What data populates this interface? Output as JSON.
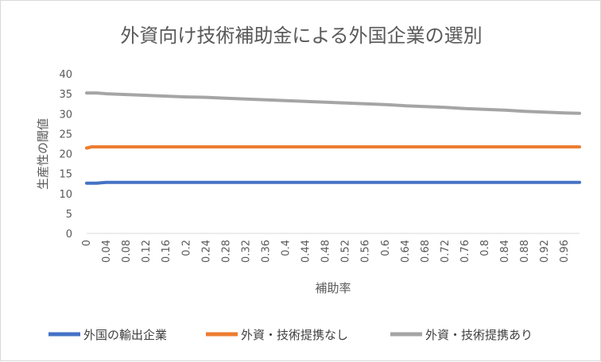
{
  "chart_data": {
    "type": "line",
    "title": "外資向け技術補助金による外国企業の選別",
    "xlabel": "補助率",
    "ylabel": "生産性の閾値",
    "ylim": [
      0,
      40
    ],
    "yticks": [
      0,
      5,
      10,
      15,
      20,
      25,
      30,
      35,
      40
    ],
    "x_tick_labels": [
      "0",
      "0.04",
      "0.08",
      "0.12",
      "0.16",
      "0.2",
      "0.24",
      "0.28",
      "0.32",
      "0.36",
      "0.4",
      "0.44",
      "0.48",
      "0.52",
      "0.56",
      "0.6",
      "0.64",
      "0.68",
      "0.72",
      "0.76",
      "0.8",
      "0.84",
      "0.88",
      "0.92",
      "0.96"
    ],
    "x": [
      0,
      0.01,
      0.02,
      0.04,
      0.08,
      0.12,
      0.16,
      0.2,
      0.24,
      0.28,
      0.32,
      0.36,
      0.4,
      0.44,
      0.48,
      0.52,
      0.56,
      0.6,
      0.64,
      0.68,
      0.72,
      0.76,
      0.8,
      0.84,
      0.88,
      0.92,
      0.96,
      0.99
    ],
    "series": [
      {
        "name": "外国の輸出企業",
        "color": "#4472c4",
        "values": [
          12.6,
          12.6,
          12.6,
          12.8,
          12.8,
          12.8,
          12.8,
          12.8,
          12.8,
          12.8,
          12.8,
          12.8,
          12.8,
          12.8,
          12.8,
          12.8,
          12.8,
          12.8,
          12.8,
          12.8,
          12.8,
          12.8,
          12.8,
          12.8,
          12.8,
          12.8,
          12.8,
          12.8
        ]
      },
      {
        "name": "外資・技術提携なし",
        "color": "#ed7d31",
        "values": [
          21.4,
          21.7,
          21.7,
          21.7,
          21.7,
          21.7,
          21.7,
          21.7,
          21.7,
          21.7,
          21.7,
          21.7,
          21.7,
          21.7,
          21.7,
          21.7,
          21.7,
          21.7,
          21.7,
          21.7,
          21.7,
          21.7,
          21.7,
          21.7,
          21.7,
          21.7,
          21.7,
          21.7
        ]
      },
      {
        "name": "外資・技術提携あり",
        "color": "#a5a5a5",
        "values": [
          35.2,
          35.2,
          35.2,
          35.0,
          34.8,
          34.6,
          34.4,
          34.2,
          34.1,
          33.9,
          33.7,
          33.5,
          33.3,
          33.1,
          32.9,
          32.7,
          32.5,
          32.3,
          32.0,
          31.8,
          31.6,
          31.3,
          31.1,
          30.9,
          30.6,
          30.4,
          30.2,
          30.1
        ]
      }
    ],
    "grid": false,
    "legend": "bottom"
  }
}
